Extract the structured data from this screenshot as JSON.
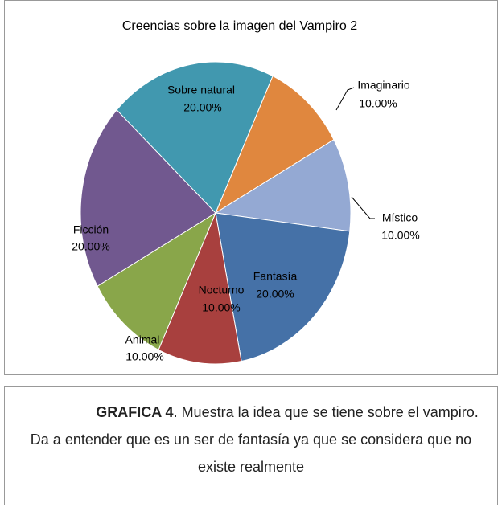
{
  "chart_data": {
    "type": "pie",
    "title": "Creencias sobre la imagen del Vampiro 2",
    "categories": [
      "Imaginario",
      "Místico",
      "Fantasía",
      "Nocturno",
      "Animal",
      "Ficción",
      "Sobre natural"
    ],
    "values": [
      10,
      10,
      20,
      10,
      10,
      20,
      20
    ],
    "value_labels": [
      "10.00%",
      "10.00%",
      "20.00%",
      "10.00%",
      "10.00%",
      "20.00%",
      "20.00%"
    ],
    "colors": [
      "#e0873e",
      "#94a9d3",
      "#4571a7",
      "#a8403e",
      "#89a64a",
      "#71588f",
      "#4198af"
    ]
  },
  "caption": {
    "bold": "GRAFICA 4",
    "text": ". Muestra la idea que se tiene sobre el vampiro. Da a entender que es un ser de fantasía ya que se considera que no existe realmente"
  }
}
